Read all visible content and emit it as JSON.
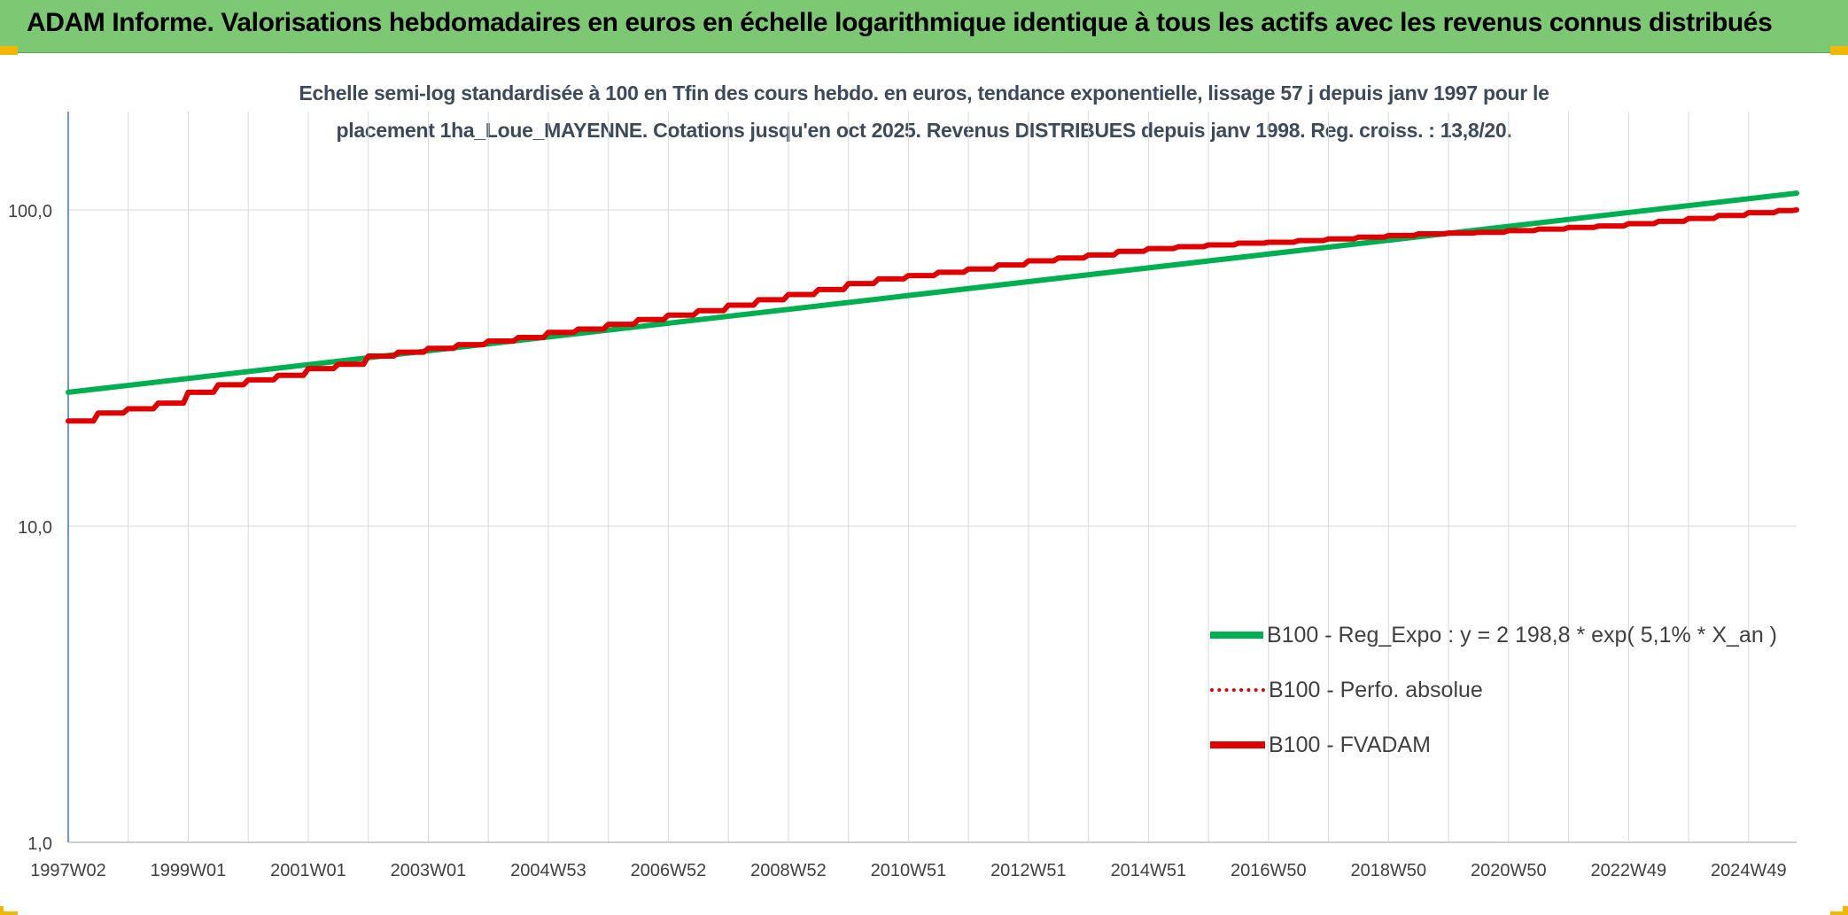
{
  "header": {
    "title": "ADAM Informe. Valorisations hebdomadaires en euros en échelle logarithmique identique à tous les actifs avec les revenus connus distribués"
  },
  "chart_data": {
    "type": "line",
    "title_lines": [
      "Echelle semi-log standardisée à 100 en Tfin des cours hebdo. en euros, tendance exponentielle, lissage 57 j depuis janv 1997 pour le",
      "placement 1ha_Loue_MAYENNE. Cotations jusqu'en oct 2025. Revenus DISTRIBUES depuis janv 1998. Reg. croiss. : 13,8/20."
    ],
    "xlabel": "",
    "ylabel": "",
    "y_scale": "log",
    "ylim": [
      1,
      200
    ],
    "xlim": [
      1997.0,
      2025.8
    ],
    "grid": true,
    "legend_position": "right-bottom",
    "x_ticks": [
      {
        "x": 1997.0,
        "label": "1997W02"
      },
      {
        "x": 1999.0,
        "label": "1999W01"
      },
      {
        "x": 2001.0,
        "label": "2001W01"
      },
      {
        "x": 2003.0,
        "label": "2003W01"
      },
      {
        "x": 2005.0,
        "label": "2004W53"
      },
      {
        "x": 2007.0,
        "label": "2006W52"
      },
      {
        "x": 2009.0,
        "label": "2008W52"
      },
      {
        "x": 2011.0,
        "label": "2010W51"
      },
      {
        "x": 2013.0,
        "label": "2012W51"
      },
      {
        "x": 2015.0,
        "label": "2014W51"
      },
      {
        "x": 2017.0,
        "label": "2016W50"
      },
      {
        "x": 2019.0,
        "label": "2018W50"
      },
      {
        "x": 2021.0,
        "label": "2020W50"
      },
      {
        "x": 2023.0,
        "label": "2022W49"
      },
      {
        "x": 2025.0,
        "label": "2024W49"
      }
    ],
    "y_ticks": [
      {
        "y": 1,
        "label": "1,0"
      },
      {
        "y": 10,
        "label": "10,0"
      },
      {
        "y": 100,
        "label": "100,0"
      }
    ],
    "series": [
      {
        "name": "B100 - Reg_Expo : y = 2 198,8 * exp( 5,1% *  X_an )",
        "color": "#00b050",
        "style": "solid",
        "x": [
          1997.0,
          2025.8
        ],
        "y": [
          26.5,
          113
        ]
      },
      {
        "name": "B100 - Perfo. absolue",
        "color": "#e00000",
        "style": "dotted",
        "x": [],
        "y": []
      },
      {
        "name": "B100 - FVADAM",
        "color": "#e00000",
        "style": "solid",
        "x": [
          1997.0,
          1997.5,
          1998.0,
          1998.5,
          1999.0,
          1999.5,
          2000.0,
          2000.5,
          2001.0,
          2001.5,
          2002.0,
          2002.5,
          2003.0,
          2003.5,
          2004.0,
          2004.5,
          2005.0,
          2005.5,
          2006.0,
          2006.5,
          2007.0,
          2007.5,
          2008.0,
          2008.5,
          2009.0,
          2009.5,
          2010.0,
          2010.5,
          2011.0,
          2011.5,
          2012.0,
          2012.5,
          2013.0,
          2013.5,
          2014.0,
          2014.5,
          2015.0,
          2015.5,
          2016.0,
          2016.5,
          2017.0,
          2017.5,
          2018.0,
          2018.5,
          2019.0,
          2019.5,
          2020.0,
          2020.5,
          2021.0,
          2021.5,
          2022.0,
          2022.5,
          2023.0,
          2023.5,
          2024.0,
          2024.5,
          2025.0,
          2025.5,
          2025.8
        ],
        "y": [
          21.5,
          22.8,
          23.5,
          24.5,
          26.5,
          28.0,
          29.0,
          30.0,
          31.5,
          32.5,
          34.5,
          35.5,
          36.5,
          37.5,
          38.5,
          39.5,
          41.0,
          42.0,
          43.5,
          45.0,
          46.5,
          48.0,
          50.0,
          52.0,
          54.0,
          56.0,
          58.5,
          60.5,
          62.0,
          63.5,
          65.0,
          67.0,
          69.0,
          70.5,
          72.0,
          74.0,
          75.5,
          76.5,
          77.5,
          78.5,
          79.0,
          80.0,
          81.0,
          82.0,
          83.0,
          84.0,
          84.5,
          85.0,
          86.0,
          87.0,
          88.0,
          89.0,
          90.5,
          92.0,
          94.0,
          96.0,
          98.0,
          99.5,
          100.0
        ]
      }
    ]
  }
}
